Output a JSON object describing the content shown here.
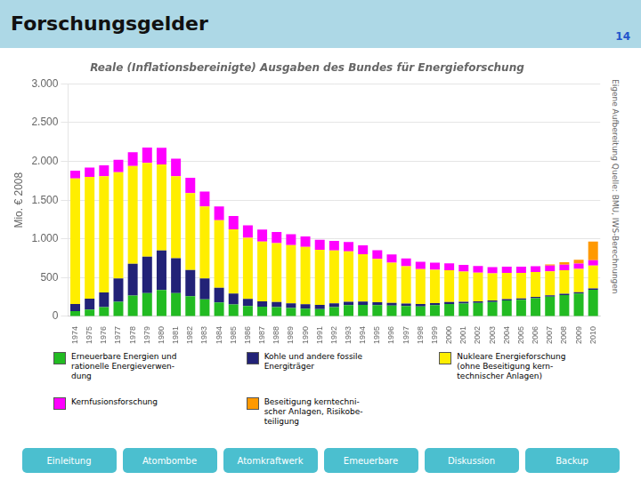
{
  "chart_data": {
    "type": "bar",
    "stacked": true,
    "title": "Forschungsgelder",
    "subtitle": "Reale (Inflationsbereinigte) Ausgaben des Bundes für Energieforschung",
    "ylabel": "Mio. € 2008",
    "categories": [
      "1974",
      "1975",
      "1976",
      "1977",
      "1978",
      "1979",
      "1980",
      "1981",
      "1982",
      "1983",
      "1984",
      "1985",
      "1986",
      "1987",
      "1988",
      "1989",
      "1990",
      "1991",
      "1992",
      "1993",
      "1994",
      "1995",
      "1996",
      "1997",
      "1998",
      "1999",
      "2000",
      "2001",
      "2002",
      "2003",
      "2004",
      "2005",
      "2006",
      "2007",
      "2008",
      "2009",
      "2010"
    ],
    "series": [
      {
        "name": "Erneuerbare Energien und\nrationelle Energieverwen-\ndung",
        "color": "#22BB22",
        "values": [
          70,
          90,
          120,
          190,
          270,
          300,
          340,
          300,
          260,
          220,
          180,
          155,
          135,
          125,
          120,
          110,
          100,
          95,
          120,
          145,
          150,
          145,
          140,
          135,
          130,
          145,
          160,
          165,
          175,
          185,
          205,
          215,
          235,
          255,
          275,
          295,
          345
        ]
      },
      {
        "name": "Kohle und andere fossile\nEnergiträger",
        "color": "#222277",
        "values": [
          90,
          140,
          190,
          300,
          410,
          470,
          510,
          450,
          340,
          270,
          190,
          140,
          90,
          70,
          65,
          60,
          58,
          55,
          50,
          45,
          42,
          38,
          35,
          32,
          30,
          28,
          26,
          23,
          21,
          20,
          18,
          18,
          17,
          17,
          17,
          17,
          17
        ]
      },
      {
        "name": "Nukleare Energieforschung\n(ohne Beseitigung kern-\ntechnischer Anlagen)",
        "color": "#FFEE00",
        "values": [
          1620,
          1570,
          1500,
          1370,
          1260,
          1210,
          1110,
          1060,
          990,
          930,
          870,
          830,
          790,
          770,
          760,
          750,
          740,
          710,
          680,
          650,
          610,
          560,
          520,
          480,
          450,
          430,
          410,
          390,
          370,
          350,
          340,
          330,
          320,
          310,
          305,
          300,
          295
        ]
      },
      {
        "name": "Kernfusionsforschung",
        "color": "#FF00FF",
        "values": [
          100,
          120,
          140,
          160,
          180,
          200,
          215,
          225,
          200,
          190,
          180,
          170,
          160,
          155,
          145,
          140,
          135,
          130,
          125,
          120,
          115,
          110,
          105,
          100,
          95,
          92,
          88,
          86,
          84,
          82,
          80,
          78,
          76,
          74,
          72,
          70,
          68
        ]
      },
      {
        "name": "Beseitigung kerntechni-\nscher Anlagen, Risikobe-\nteiligung",
        "color": "#FF9900",
        "values": [
          0,
          0,
          0,
          0,
          0,
          0,
          0,
          0,
          0,
          0,
          0,
          0,
          0,
          0,
          0,
          0,
          0,
          0,
          0,
          0,
          0,
          0,
          0,
          0,
          0,
          0,
          0,
          0,
          0,
          0,
          0,
          0,
          0,
          15,
          30,
          50,
          240
        ]
      }
    ],
    "ylim": [
      0,
      3000
    ],
    "yticks": [
      0,
      500,
      {
        "value": 1000,
        "label": "1.000"
      },
      {
        "value": 1500,
        "label": "1.500"
      },
      {
        "value": 2000,
        "label": "2.000"
      },
      {
        "value": 2500,
        "label": "2.500"
      },
      {
        "value": 3000,
        "label": "3.000"
      }
    ],
    "grid": true,
    "annotations": [
      "14",
      "Eigene Aufbereitung Quelle: BMU, IWS-Berechnungen",
      "Einleitung",
      "Atombombe",
      "Atomkraftwerk",
      "Emeuerbare",
      "Diskussion",
      "Backup"
    ]
  }
}
